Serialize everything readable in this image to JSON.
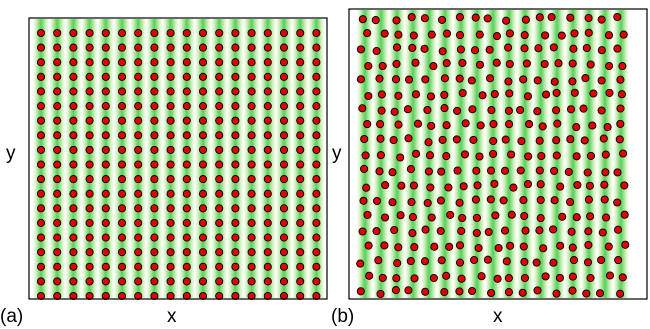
{
  "panels": [
    {
      "tag": "(a)",
      "xlabel": "x",
      "ylabel": "y",
      "stripe_count": 18,
      "particle_columns": 18,
      "particle_rows": 19,
      "arrangement": "ordered-square-lattice"
    },
    {
      "tag": "(b)",
      "xlabel": "x",
      "ylabel": "y",
      "stripe_count": 17,
      "particle_columns": 17,
      "particle_rows": 19,
      "arrangement": "disordered-buckled-columns"
    }
  ],
  "colors": {
    "background": "#ffffff",
    "stripe_light": "#c6eeb0",
    "stripe_dark": "#55cf55",
    "particle_fill": "#e00000",
    "particle_stroke": "#000000",
    "frame": "#000000"
  }
}
